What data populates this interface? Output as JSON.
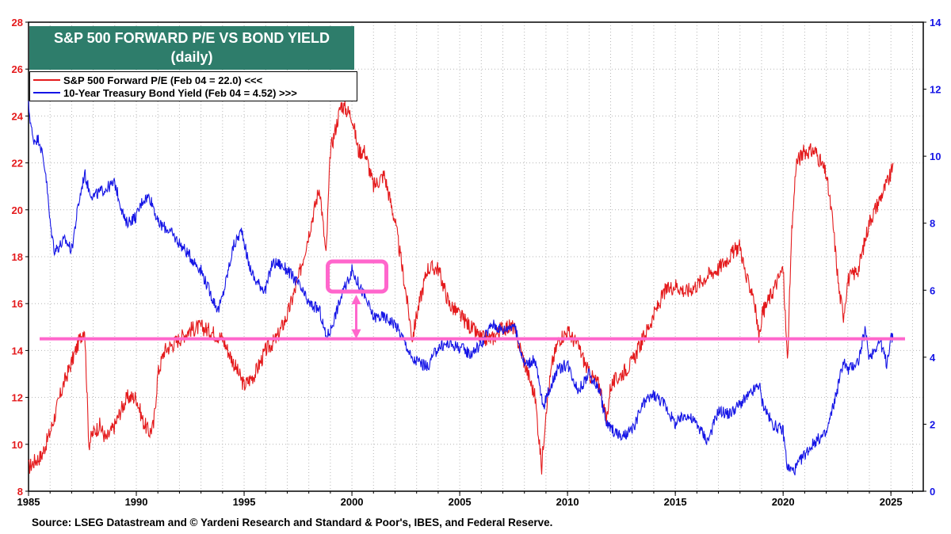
{
  "title": {
    "line1": "S&P 500 FORWARD P/E VS BOND YIELD",
    "line2": "(daily)"
  },
  "legend": [
    {
      "label": "S&P 500 Forward P/E (Feb 04 = 22.0) <<<",
      "color": "#e41a1c"
    },
    {
      "label": "10-Year Treasury Bond Yield (Feb 04 = 4.52) >>>",
      "color": "#1515e6"
    }
  ],
  "source": "Source: LSEG Datastream and © Yardeni Research and Standard & Poor's, IBES, and Federal Reserve.",
  "chart_data": {
    "type": "line",
    "title": "S&P 500 FORWARD P/E VS BOND YIELD (daily)",
    "x_ticks": [
      "1985",
      "1990",
      "1995",
      "2000",
      "2005",
      "2010",
      "2015",
      "2020",
      "2025"
    ],
    "xlim": [
      1985,
      2026.5
    ],
    "left_axis": {
      "ylim": [
        8,
        28
      ],
      "ticks": [
        "8",
        "10",
        "12",
        "14",
        "16",
        "18",
        "20",
        "22",
        "24",
        "26",
        "28"
      ],
      "color": "#e41a1c"
    },
    "right_axis": {
      "ylim": [
        0,
        14
      ],
      "ticks": [
        "0",
        "2",
        "4",
        "6",
        "8",
        "10",
        "12",
        "14"
      ],
      "color": "#1515e6"
    },
    "grid": "vertical-dotted-and-horizontal-dotted",
    "series": [
      {
        "name": "S&P 500 Forward P/E (Feb 04 = 22.0) <<<",
        "axis": "left",
        "color": "#e41a1c",
        "x": [
          1985.0,
          1985.3,
          1985.6,
          1986.0,
          1986.3,
          1986.6,
          1987.0,
          1987.3,
          1987.6,
          1987.8,
          1988.0,
          1988.3,
          1988.6,
          1989.0,
          1989.3,
          1989.6,
          1990.0,
          1990.3,
          1990.6,
          1990.8,
          1991.0,
          1991.3,
          1991.6,
          1992.0,
          1992.5,
          1993.0,
          1993.5,
          1994.0,
          1994.5,
          1995.0,
          1995.5,
          1996.0,
          1996.5,
          1997.0,
          1997.5,
          1998.0,
          1998.5,
          1998.8,
          1999.0,
          1999.5,
          2000.0,
          2000.3,
          2000.6,
          2001.0,
          2001.5,
          2002.0,
          2002.5,
          2002.8,
          2003.0,
          2003.5,
          2004.0,
          2004.5,
          2005.0,
          2005.5,
          2006.0,
          2006.5,
          2007.0,
          2007.5,
          2008.0,
          2008.5,
          2008.8,
          2009.0,
          2009.3,
          2009.6,
          2010.0,
          2010.5,
          2011.0,
          2011.5,
          2011.8,
          2012.0,
          2012.5,
          2013.0,
          2013.5,
          2014.0,
          2014.5,
          2015.0,
          2015.5,
          2016.0,
          2016.5,
          2017.0,
          2017.5,
          2018.0,
          2018.3,
          2018.6,
          2018.9,
          2019.0,
          2019.5,
          2020.0,
          2020.2,
          2020.4,
          2020.6,
          2021.0,
          2021.5,
          2022.0,
          2022.3,
          2022.6,
          2022.8,
          2023.0,
          2023.5,
          2024.0,
          2024.5,
          2025.0,
          2025.1
        ],
        "values": [
          9.0,
          9.3,
          9.5,
          10.5,
          11.5,
          12.5,
          13.5,
          14.3,
          15.0,
          10.0,
          10.5,
          10.8,
          10.2,
          10.8,
          11.5,
          12.0,
          12.0,
          11.0,
          10.5,
          10.8,
          13.0,
          14.0,
          14.2,
          14.5,
          14.9,
          15.0,
          14.8,
          14.5,
          13.5,
          12.5,
          13.0,
          14.0,
          14.5,
          15.5,
          17.0,
          19.0,
          21.0,
          18.0,
          22.5,
          24.5,
          24.0,
          22.5,
          22.5,
          21.0,
          21.5,
          19.5,
          16.5,
          14.5,
          15.5,
          17.5,
          17.5,
          16.0,
          15.5,
          15.0,
          14.5,
          14.5,
          15.0,
          15.0,
          13.5,
          12.0,
          9.0,
          11.5,
          13.5,
          14.5,
          14.8,
          14.2,
          13.0,
          12.5,
          11.0,
          12.5,
          13.0,
          13.5,
          14.5,
          15.5,
          16.5,
          16.8,
          16.5,
          16.8,
          17.2,
          17.5,
          18.0,
          18.5,
          17.0,
          16.5,
          14.5,
          15.5,
          16.5,
          17.5,
          13.5,
          19.0,
          22.0,
          22.5,
          22.5,
          21.5,
          19.5,
          16.5,
          15.5,
          17.0,
          17.5,
          19.5,
          20.5,
          21.5,
          22.0
        ]
      },
      {
        "name": "10-Year Treasury Bond Yield (Feb 04 = 4.52) >>>",
        "axis": "right",
        "color": "#1515e6",
        "x": [
          1985.0,
          1985.2,
          1985.5,
          1985.8,
          1986.0,
          1986.2,
          1986.4,
          1986.7,
          1987.0,
          1987.3,
          1987.6,
          1987.8,
          1988.0,
          1988.5,
          1989.0,
          1989.5,
          1990.0,
          1990.3,
          1990.6,
          1990.8,
          1991.0,
          1991.5,
          1992.0,
          1992.5,
          1993.0,
          1993.5,
          1993.8,
          1994.0,
          1994.5,
          1994.9,
          1995.2,
          1995.5,
          1996.0,
          1996.3,
          1996.6,
          1997.0,
          1997.5,
          1998.0,
          1998.5,
          1998.8,
          1999.0,
          1999.5,
          2000.0,
          2000.3,
          2000.6,
          2001.0,
          2001.5,
          2002.0,
          2002.5,
          2002.8,
          2003.0,
          2003.5,
          2004.0,
          2004.5,
          2005.0,
          2005.5,
          2006.0,
          2006.5,
          2007.0,
          2007.5,
          2008.0,
          2008.5,
          2008.9,
          2009.0,
          2009.5,
          2010.0,
          2010.5,
          2011.0,
          2011.5,
          2011.8,
          2012.0,
          2012.5,
          2013.0,
          2013.5,
          2014.0,
          2014.5,
          2015.0,
          2015.5,
          2016.0,
          2016.5,
          2017.0,
          2017.5,
          2018.0,
          2018.5,
          2018.9,
          2019.0,
          2019.5,
          2020.0,
          2020.2,
          2020.5,
          2021.0,
          2021.5,
          2022.0,
          2022.5,
          2022.8,
          2023.0,
          2023.5,
          2023.8,
          2024.0,
          2024.5,
          2024.8,
          2025.0,
          2025.1
        ],
        "values": [
          11.5,
          10.5,
          10.5,
          9.5,
          8.0,
          7.2,
          7.3,
          7.5,
          7.2,
          8.5,
          9.5,
          9.0,
          8.8,
          9.0,
          9.2,
          8.0,
          8.2,
          8.7,
          8.8,
          8.5,
          8.0,
          7.8,
          7.4,
          7.0,
          6.6,
          5.8,
          5.4,
          5.8,
          7.3,
          7.8,
          6.8,
          6.3,
          6.0,
          6.8,
          6.8,
          6.6,
          6.2,
          5.6,
          5.4,
          4.6,
          4.8,
          5.8,
          6.6,
          6.2,
          5.8,
          5.2,
          5.2,
          5.0,
          4.4,
          3.9,
          3.9,
          3.7,
          4.3,
          4.4,
          4.3,
          4.1,
          4.4,
          5.0,
          4.8,
          5.0,
          3.8,
          3.9,
          2.4,
          2.8,
          3.6,
          3.8,
          3.0,
          3.5,
          3.0,
          2.0,
          1.9,
          1.6,
          1.8,
          2.6,
          2.9,
          2.6,
          2.0,
          2.3,
          2.0,
          1.5,
          2.4,
          2.3,
          2.6,
          2.9,
          3.2,
          2.7,
          2.0,
          1.8,
          0.7,
          0.6,
          1.1,
          1.5,
          1.7,
          3.0,
          3.9,
          3.6,
          3.9,
          4.8,
          4.0,
          4.5,
          3.8,
          4.6,
          4.52
        ]
      }
    ],
    "annotations": {
      "horizontal_line_pe": 14.5,
      "highlight_year": 2000.2,
      "highlight_yield": 6.5,
      "color": "#ff66cc"
    }
  }
}
